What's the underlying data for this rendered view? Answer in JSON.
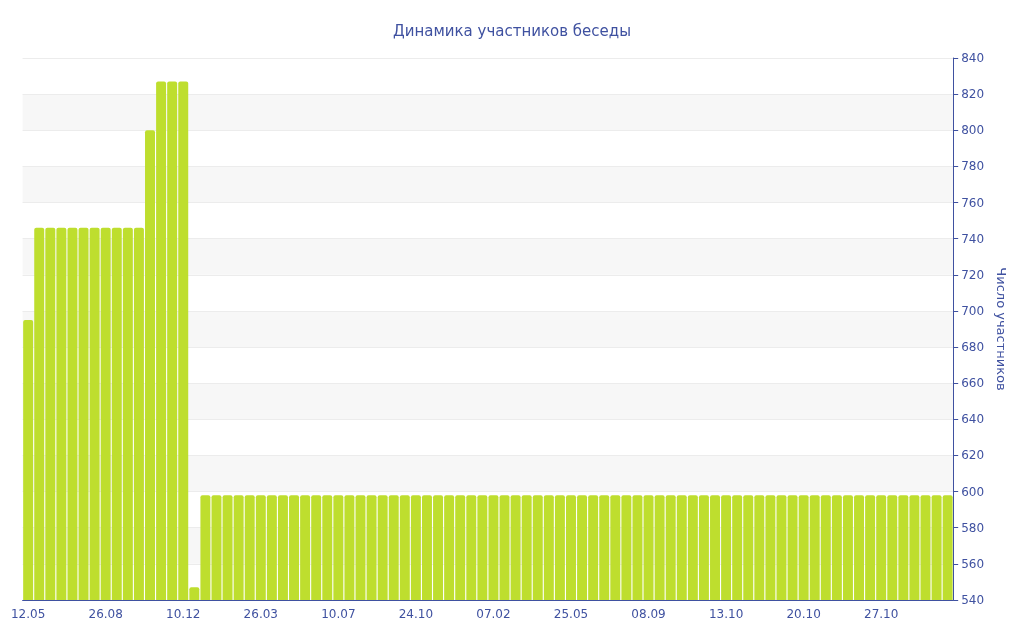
{
  "chart_data": {
    "type": "bar",
    "title": "Динамика участников беседы",
    "ylabel": "Число участников",
    "categories": [
      "12.05",
      null,
      null,
      null,
      null,
      null,
      null,
      "26.08",
      null,
      null,
      null,
      null,
      null,
      null,
      "10.12",
      null,
      null,
      null,
      null,
      null,
      null,
      "26.03",
      null,
      null,
      null,
      null,
      null,
      null,
      "10.07",
      null,
      null,
      null,
      null,
      null,
      null,
      "24.10",
      null,
      null,
      null,
      null,
      null,
      null,
      "07.02",
      null,
      null,
      null,
      null,
      null,
      null,
      "25.05",
      null,
      null,
      null,
      null,
      null,
      null,
      "08.09",
      null,
      null,
      null,
      null,
      null,
      null,
      "13.10",
      null,
      null,
      null,
      null,
      null,
      null,
      "20.10",
      null,
      null,
      null,
      null,
      null,
      null,
      "27.10",
      null,
      null,
      null,
      null,
      null,
      null
    ],
    "values": [
      695,
      746,
      746,
      746,
      746,
      746,
      746,
      746,
      746,
      746,
      746,
      800,
      827,
      827,
      827,
      547,
      598,
      598,
      598,
      598,
      598,
      598,
      598,
      598,
      598,
      598,
      598,
      598,
      598,
      598,
      598,
      598,
      598,
      598,
      598,
      598,
      598,
      598,
      598,
      598,
      598,
      598,
      598,
      598,
      598,
      598,
      598,
      598,
      598,
      598,
      598,
      598,
      598,
      598,
      598,
      598,
      598,
      598,
      598,
      598,
      598,
      598,
      598,
      598,
      598,
      598,
      598,
      598,
      598,
      598,
      598,
      598,
      598,
      598,
      598,
      598,
      598,
      598,
      598,
      598,
      598,
      598,
      598,
      598
    ],
    "color": "#bede2e",
    "ylim": [
      540,
      840
    ],
    "yticks": [
      540,
      560,
      580,
      600,
      620,
      640,
      660,
      680,
      700,
      720,
      740,
      760,
      780,
      800,
      820,
      840
    ],
    "grid": "y"
  }
}
